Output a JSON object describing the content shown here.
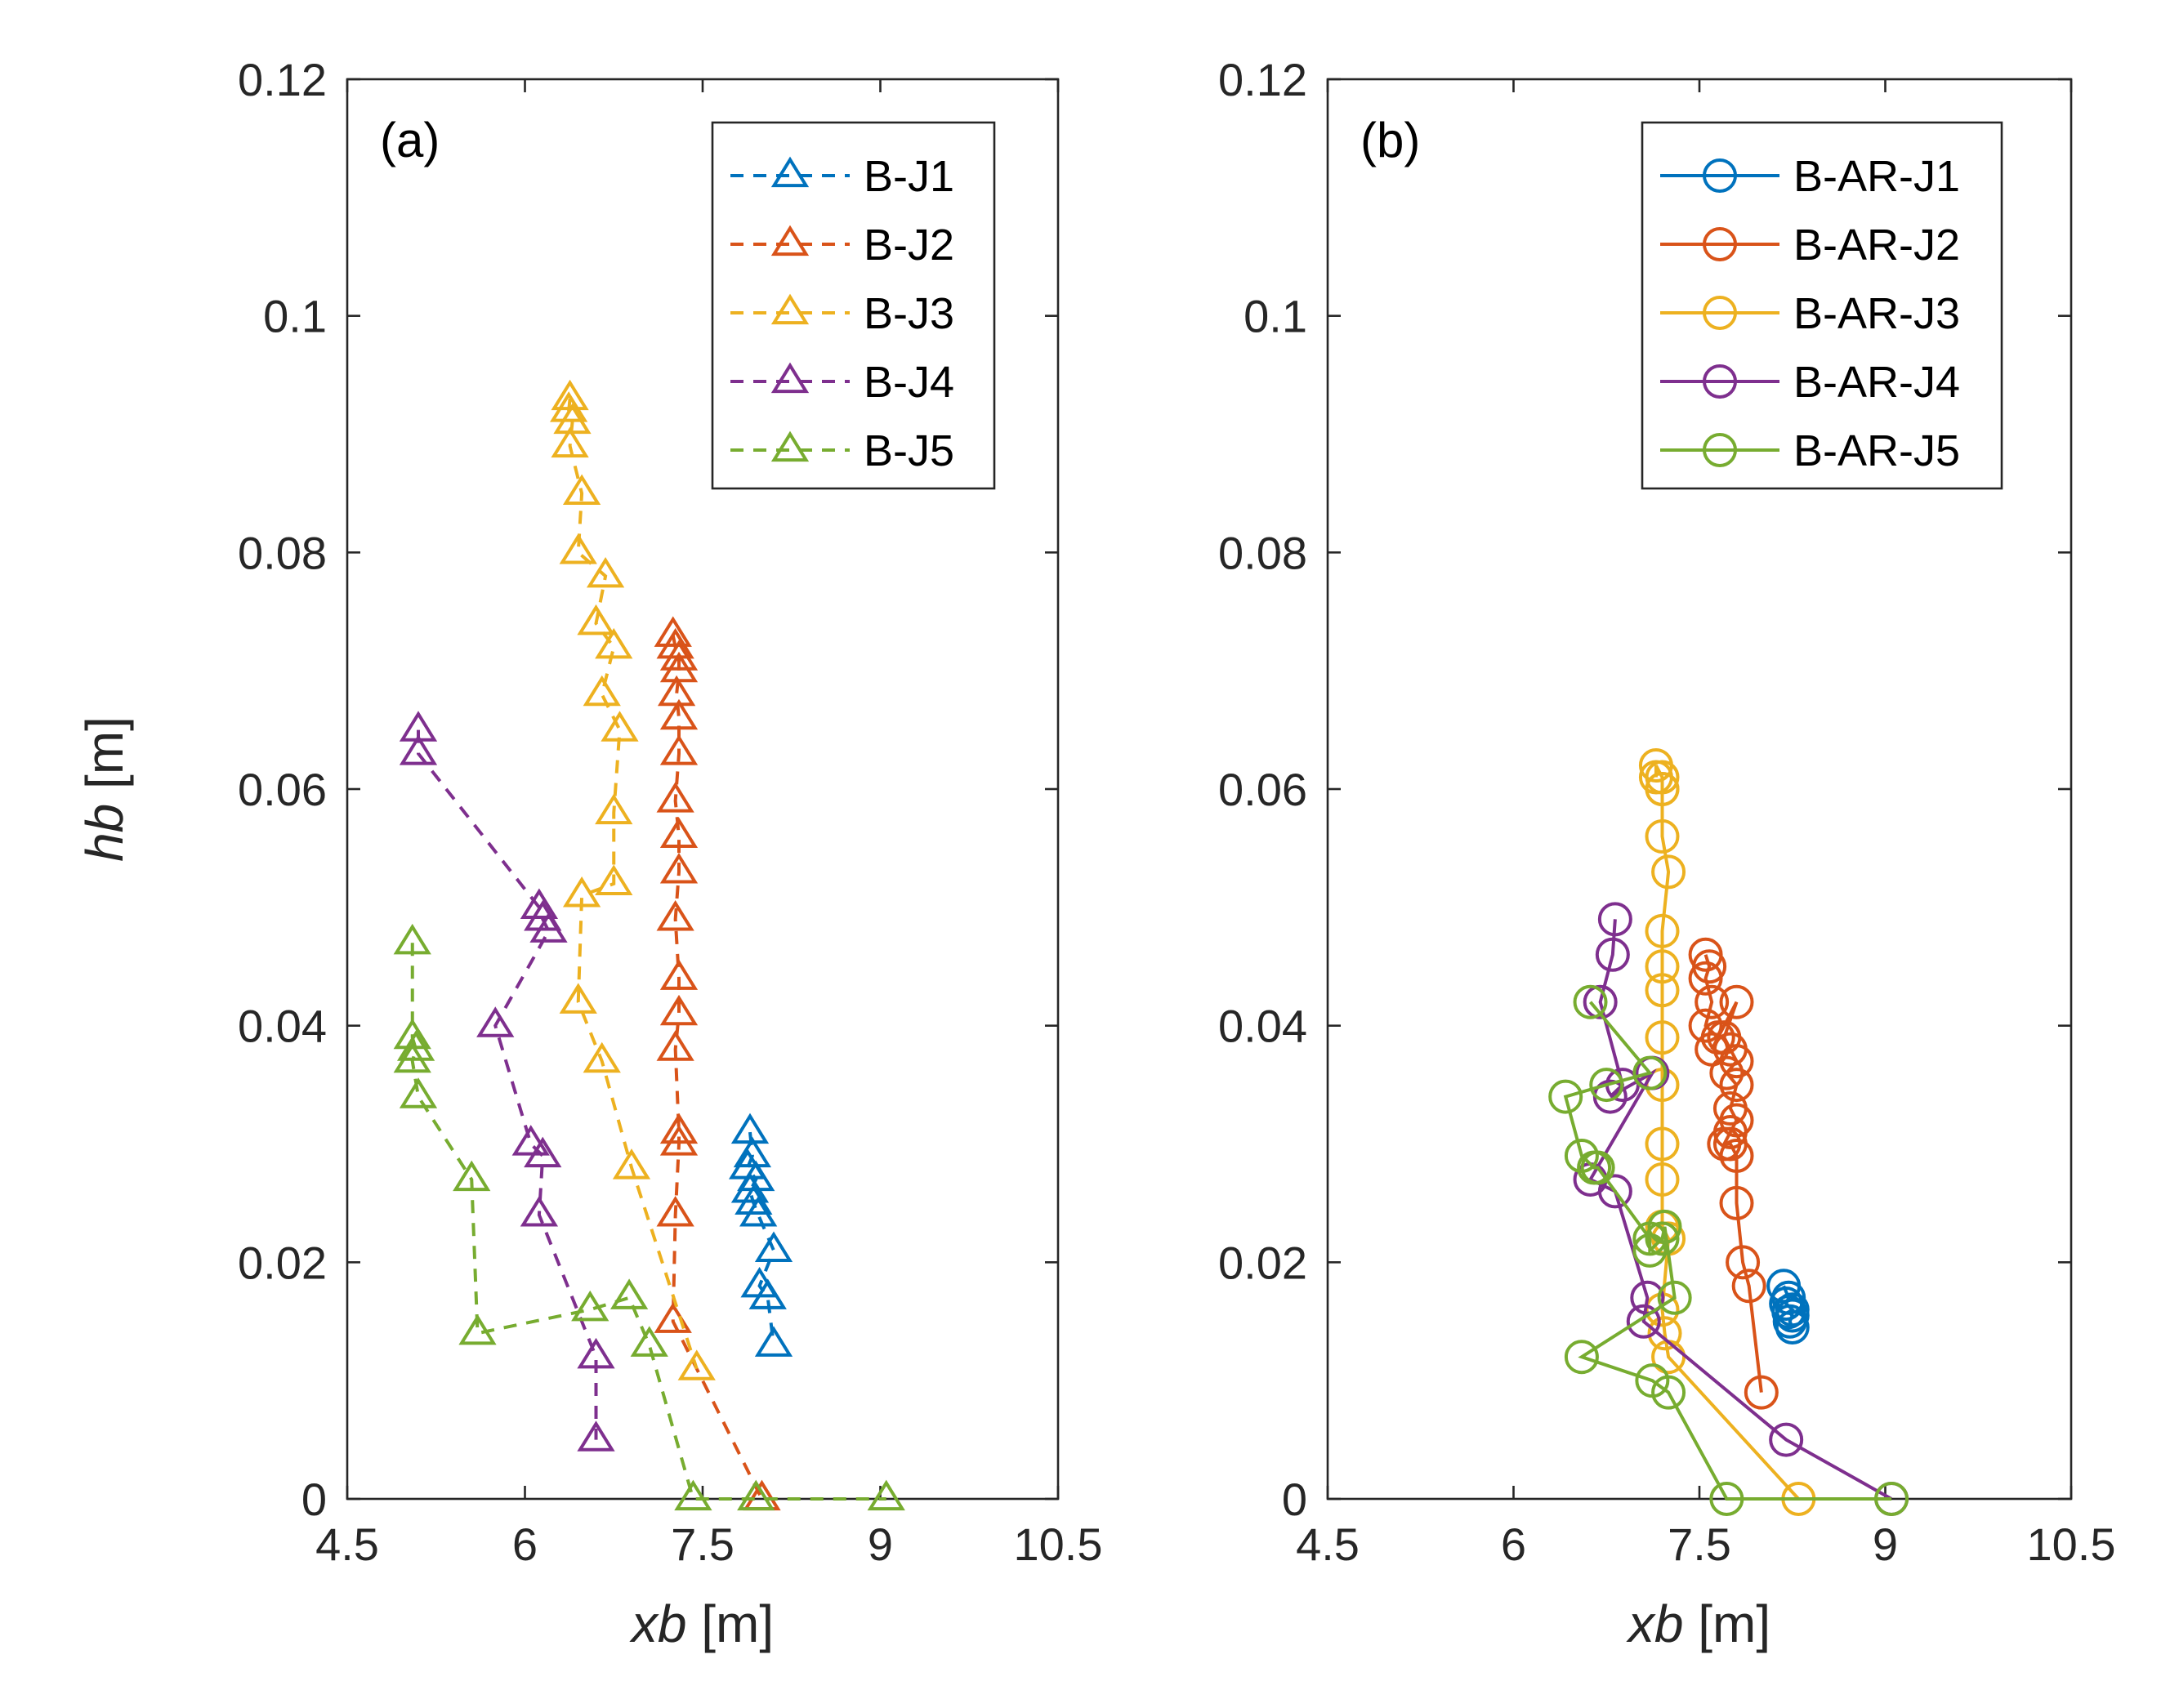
{
  "chart_data": [
    {
      "type": "line",
      "panel_label": "(a)",
      "xlabel": {
        "var": "xb",
        "unit": " [m]"
      },
      "ylabel": {
        "var": "hb",
        "unit": " [m]"
      },
      "xlim": [
        4.5,
        10.5
      ],
      "ylim": [
        0,
        0.12
      ],
      "xticks": [
        4.5,
        6,
        7.5,
        9,
        10.5
      ],
      "xtick_labels": [
        "4.5",
        "6",
        "7.5",
        "9",
        "10.5"
      ],
      "yticks": [
        0,
        0.02,
        0.04,
        0.06,
        0.08,
        0.1,
        0.12
      ],
      "ytick_labels": [
        "0",
        "0.02",
        "0.04",
        "0.06",
        "0.08",
        "0.1",
        "0.12"
      ],
      "marker": "triangle",
      "line_style": "dashed",
      "legend_position": "top-right",
      "series": [
        {
          "name": "B-J1",
          "color": "#0072BD",
          "x": [
            7.9,
            7.92,
            7.88,
            7.95,
            7.9,
            7.93,
            7.97,
            8.1,
            7.98,
            8.05,
            8.1
          ],
          "y": [
            0.031,
            0.029,
            0.028,
            0.027,
            0.026,
            0.025,
            0.024,
            0.021,
            0.018,
            0.017,
            0.013
          ]
        },
        {
          "name": "B-J2",
          "color": "#D95319",
          "x": [
            7.25,
            7.27,
            7.3,
            7.3,
            7.28,
            7.3,
            7.3,
            7.27,
            7.3,
            7.3,
            7.27,
            7.3,
            7.3,
            7.27,
            7.3,
            7.3,
            7.27,
            7.25,
            8.0
          ],
          "y": [
            0.073,
            0.072,
            0.071,
            0.07,
            0.068,
            0.066,
            0.063,
            0.059,
            0.056,
            0.053,
            0.049,
            0.044,
            0.041,
            0.038,
            0.031,
            0.03,
            0.024,
            0.015,
            0.0
          ]
        },
        {
          "name": "B-J3",
          "color": "#EDB120",
          "x": [
            6.38,
            6.37,
            6.4,
            6.38,
            6.48,
            6.45,
            6.68,
            6.6,
            6.75,
            6.65,
            6.8,
            6.75,
            6.75,
            6.48,
            6.45,
            6.65,
            6.9,
            7.45
          ],
          "y": [
            0.093,
            0.092,
            0.091,
            0.089,
            0.085,
            0.08,
            0.078,
            0.074,
            0.072,
            0.068,
            0.065,
            0.058,
            0.052,
            0.051,
            0.042,
            0.037,
            0.028,
            0.011
          ]
        },
        {
          "name": "B-J4",
          "color": "#7E2F8E",
          "x": [
            5.1,
            5.1,
            6.12,
            6.15,
            6.2,
            5.75,
            6.05,
            6.15,
            6.12,
            6.6,
            6.6
          ],
          "y": [
            0.065,
            0.063,
            0.05,
            0.049,
            0.048,
            0.04,
            0.03,
            0.029,
            0.024,
            0.012,
            0.005
          ]
        },
        {
          "name": "B-J5",
          "color": "#77AC30",
          "x": [
            5.05,
            5.05,
            5.08,
            5.05,
            5.1,
            5.55,
            5.6,
            6.55,
            6.88,
            7.05,
            7.42,
            7.95,
            9.05
          ],
          "y": [
            0.047,
            0.039,
            0.038,
            0.037,
            0.034,
            0.027,
            0.014,
            0.016,
            0.017,
            0.013,
            0.0,
            0.0,
            0.0
          ]
        }
      ]
    },
    {
      "type": "line",
      "panel_label": "(b)",
      "xlabel": {
        "var": "xb",
        "unit": " [m]"
      },
      "xlim": [
        4.5,
        10.5
      ],
      "ylim": [
        0,
        0.12
      ],
      "xticks": [
        4.5,
        6,
        7.5,
        9,
        10.5
      ],
      "xtick_labels": [
        "4.5",
        "6",
        "7.5",
        "9",
        "10.5"
      ],
      "yticks": [
        0,
        0.02,
        0.04,
        0.06,
        0.08,
        0.1,
        0.12
      ],
      "ytick_labels": [
        "0",
        "0.02",
        "0.04",
        "0.06",
        "0.08",
        "0.1",
        "0.12"
      ],
      "marker": "circle",
      "line_style": "solid",
      "legend_position": "top-right",
      "series": [
        {
          "name": "B-AR-J1",
          "color": "#0072BD",
          "x": [
            8.18,
            8.22,
            8.2,
            8.25,
            8.22,
            8.25,
            8.23,
            8.25
          ],
          "y": [
            0.018,
            0.017,
            0.0165,
            0.016,
            0.0158,
            0.0155,
            0.015,
            0.0145
          ]
        },
        {
          "name": "B-AR-J2",
          "color": "#D95319",
          "x": [
            7.55,
            7.58,
            7.55,
            7.6,
            7.55,
            7.65,
            7.6,
            7.8,
            7.7,
            7.75,
            7.8,
            7.72,
            7.8,
            7.75,
            7.8,
            7.75,
            7.7,
            7.75,
            7.8,
            7.8,
            7.85,
            7.9,
            8.0
          ],
          "y": [
            0.046,
            0.045,
            0.044,
            0.042,
            0.04,
            0.039,
            0.038,
            0.042,
            0.039,
            0.038,
            0.037,
            0.036,
            0.035,
            0.033,
            0.032,
            0.031,
            0.03,
            0.03,
            0.029,
            0.025,
            0.02,
            0.018,
            0.009
          ]
        },
        {
          "name": "B-AR-J3",
          "color": "#EDB120",
          "x": [
            7.15,
            7.15,
            7.2,
            7.2,
            7.2,
            7.2,
            7.25,
            7.2,
            7.2,
            7.2,
            7.2,
            7.2,
            7.2,
            7.2,
            7.2,
            7.25,
            7.2,
            7.22,
            7.25,
            8.3
          ],
          "y": [
            0.061,
            0.062,
            0.061,
            0.06,
            0.06,
            0.056,
            0.053,
            0.048,
            0.045,
            0.043,
            0.039,
            0.035,
            0.03,
            0.027,
            0.023,
            0.022,
            0.016,
            0.014,
            0.012,
            0.0
          ]
        },
        {
          "name": "B-AR-J4",
          "color": "#7E2F8E",
          "x": [
            6.82,
            6.8,
            6.7,
            6.88,
            6.78,
            7.12,
            6.62,
            6.82,
            7.08,
            7.05,
            8.2,
            9.05
          ],
          "y": [
            0.049,
            0.046,
            0.042,
            0.035,
            0.034,
            0.036,
            0.027,
            0.026,
            0.017,
            0.015,
            0.005,
            0.0
          ]
        },
        {
          "name": "B-AR-J5",
          "color": "#77AC30",
          "x": [
            6.62,
            7.1,
            6.75,
            6.42,
            6.55,
            6.65,
            6.68,
            7.1,
            7.1,
            7.2,
            7.22,
            7.3,
            6.55,
            7.12,
            7.25,
            7.72,
            9.05
          ],
          "y": [
            0.042,
            0.036,
            0.035,
            0.034,
            0.029,
            0.028,
            0.028,
            0.022,
            0.021,
            0.022,
            0.023,
            0.017,
            0.012,
            0.01,
            0.009,
            0.0,
            0.0
          ]
        }
      ]
    }
  ]
}
